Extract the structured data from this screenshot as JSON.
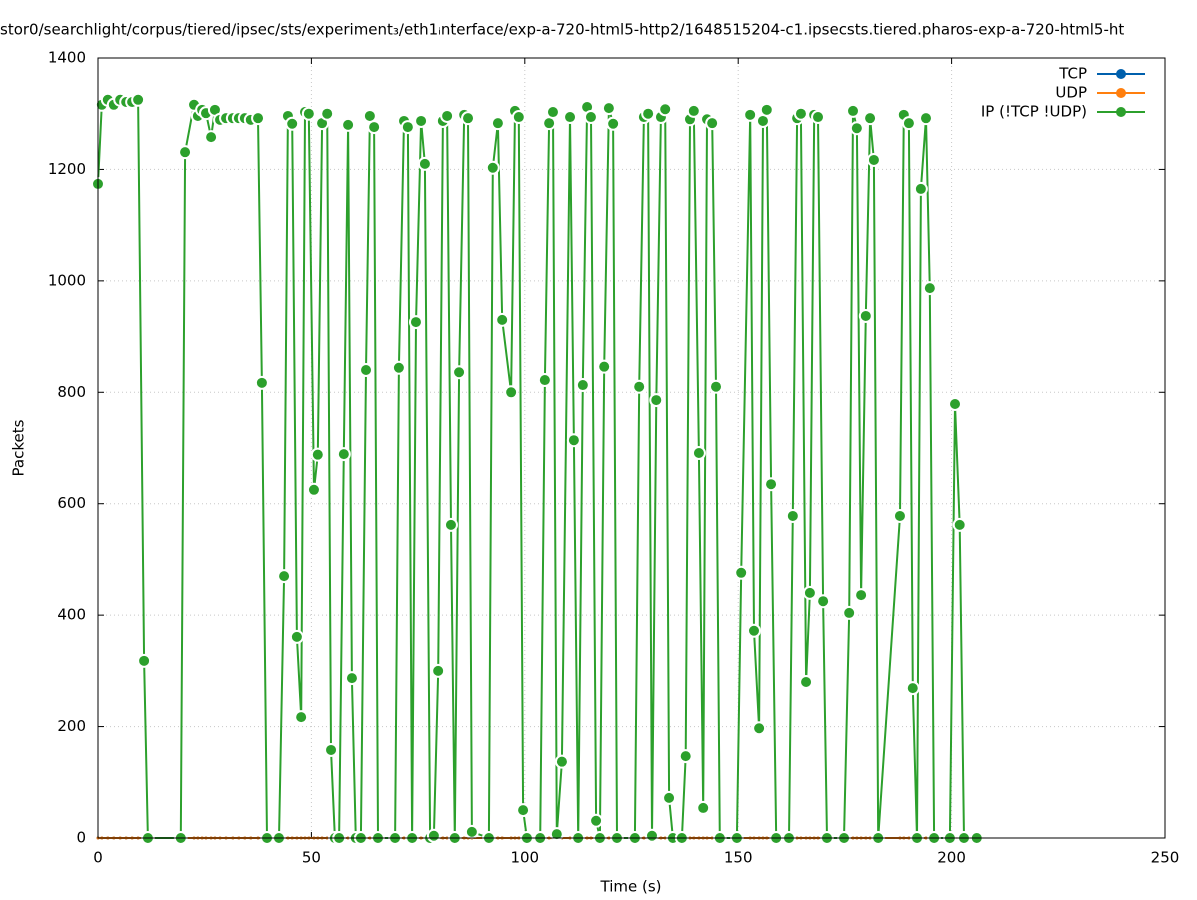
{
  "chart_data": {
    "type": "line",
    "title": "stor0/searchlight/corpus/tiered/ipsec/sts/experiment₃/eth1ᵢnterface/exp-a-720-html5-http2/1648515204-c1.ipsecsts.tiered.pharos-exp-a-720-html5-ht",
    "x_label": "Time (s)",
    "y_label": "Packets",
    "xlim": [
      0,
      250
    ],
    "xticks": [
      0,
      50,
      100,
      150,
      200,
      250
    ],
    "ylim": [
      0,
      1400
    ],
    "yticks": [
      0,
      200,
      400,
      600,
      800,
      1000,
      1200,
      1400
    ],
    "grid": true,
    "legend": "top-right",
    "x": [
      0,
      0.9,
      2.3,
      3.7,
      5.2,
      6.6,
      8.0,
      9.4,
      10.8,
      11.7,
      19.4,
      20.4,
      22.5,
      23.4,
      24.4,
      25.3,
      26.5,
      27.4,
      28.6,
      30.0,
      31.6,
      33.0,
      34.4,
      35.8,
      37.5,
      38.4,
      39.6,
      42.4,
      43.6,
      44.5,
      45.5,
      46.6,
      47.6,
      48.5,
      49.4,
      50.6,
      51.5,
      52.5,
      53.7,
      54.6,
      55.5,
      56.5,
      57.6,
      58.6,
      59.5,
      60.4,
      61.6,
      62.8,
      63.7,
      64.7,
      65.6,
      69.6,
      70.5,
      71.7,
      72.6,
      73.6,
      74.5,
      75.7,
      76.6,
      77.8,
      78.7,
      79.7,
      80.8,
      81.8,
      82.7,
      83.6,
      84.6,
      85.8,
      86.7,
      87.6,
      91.6,
      92.5,
      93.7,
      94.7,
      96.8,
      97.7,
      98.6,
      99.6,
      100.5,
      103.6,
      104.7,
      105.7,
      106.6,
      107.5,
      108.7,
      110.6,
      111.5,
      112.5,
      113.6,
      114.6,
      115.5,
      116.7,
      117.6,
      118.6,
      119.7,
      120.7,
      121.6,
      125.8,
      126.8,
      127.9,
      128.9,
      129.8,
      130.8,
      131.9,
      132.9,
      133.8,
      134.7,
      136.8,
      137.7,
      138.7,
      139.6,
      140.8,
      141.8,
      142.7,
      143.9,
      144.8,
      145.7,
      149.7,
      150.7,
      152.8,
      153.7,
      154.9,
      155.8,
      156.7,
      157.7,
      158.9,
      161.9,
      162.8,
      163.8,
      164.7,
      165.9,
      166.8,
      167.8,
      168.7,
      169.9,
      170.8,
      174.8,
      176.0,
      176.9,
      177.8,
      178.8,
      179.9,
      180.9,
      181.8,
      182.8,
      187.9,
      188.8,
      190.0,
      190.9,
      191.9,
      192.8,
      194.0,
      194.9,
      195.9,
      199.6,
      200.8,
      201.9,
      202.9,
      205.9
    ],
    "series": [
      {
        "name": "TCP",
        "color": "#0060ad",
        "values": [
          0,
          0,
          0,
          0,
          0,
          0,
          0,
          0,
          0,
          0,
          0,
          0,
          0,
          0,
          0,
          0,
          0,
          0,
          0,
          0,
          0,
          0,
          0,
          0,
          0,
          0,
          0,
          0,
          0,
          0,
          0,
          0,
          0,
          0,
          0,
          0,
          0,
          0,
          0,
          0,
          0,
          0,
          0,
          0,
          0,
          0,
          0,
          0,
          0,
          0,
          0,
          0,
          0,
          0,
          0,
          0,
          0,
          0,
          0,
          0,
          0,
          0,
          0,
          0,
          0,
          0,
          0,
          0,
          0,
          0,
          0,
          0,
          0,
          0,
          0,
          0,
          0,
          0,
          0,
          0,
          0,
          0,
          0,
          0,
          0,
          0,
          0,
          0,
          0,
          0,
          0,
          0,
          0,
          0,
          0,
          0,
          0,
          0,
          0,
          0,
          0,
          0,
          0,
          0,
          0,
          0,
          0,
          0,
          0,
          0,
          0,
          0,
          0,
          0,
          0,
          0,
          0,
          0,
          0,
          0,
          0,
          0,
          0,
          0,
          0,
          0,
          0,
          0,
          0,
          0,
          0,
          0,
          0,
          0,
          0,
          0,
          0,
          0,
          0,
          0,
          0,
          0,
          0,
          0,
          0,
          0,
          0,
          0,
          0,
          0,
          0,
          0,
          0,
          0,
          0,
          0,
          0,
          0,
          0
        ]
      },
      {
        "name": "UDP",
        "color": "#ff7f0e",
        "values": [
          0,
          0,
          0,
          0,
          0,
          0,
          0,
          0,
          0,
          0,
          0,
          0,
          0,
          0,
          0,
          0,
          0,
          0,
          0,
          0,
          0,
          0,
          0,
          0,
          0,
          0,
          0,
          0,
          0,
          0,
          0,
          0,
          0,
          0,
          0,
          0,
          0,
          0,
          0,
          0,
          0,
          0,
          0,
          0,
          0,
          0,
          0,
          0,
          0,
          0,
          0,
          0,
          0,
          0,
          0,
          0,
          0,
          0,
          0,
          0,
          0,
          0,
          0,
          0,
          0,
          0,
          0,
          0,
          0,
          0,
          0,
          0,
          0,
          0,
          0,
          0,
          0,
          0,
          0,
          0,
          0,
          0,
          0,
          0,
          0,
          0,
          0,
          0,
          0,
          0,
          0,
          0,
          0,
          0,
          0,
          0,
          0,
          0,
          0,
          0,
          0,
          0,
          0,
          0,
          0,
          0,
          0,
          0,
          0,
          0,
          0,
          0,
          0,
          0,
          0,
          0,
          0,
          0,
          0,
          0,
          0,
          0,
          0,
          0,
          0,
          0,
          0,
          0,
          0,
          0,
          0,
          0,
          0,
          0,
          0,
          0,
          0,
          0,
          0,
          0,
          0,
          0,
          0,
          0,
          0,
          0,
          0,
          0,
          0,
          0,
          0,
          0,
          0,
          0,
          0,
          0,
          0,
          0,
          0
        ]
      },
      {
        "name": "IP (!TCP  !UDP)",
        "color": "#2ca02c",
        "values": [
          1174,
          1316,
          1325,
          1316,
          1325,
          1321,
          1321,
          1325,
          318,
          0,
          0,
          1231,
          1316,
          1296,
          1307,
          1301,
          1258,
          1307,
          1289,
          1292,
          1292,
          1292,
          1292,
          1289,
          1292,
          817,
          0,
          0,
          470,
          1296,
          1282,
          361,
          217,
          1303,
          1300,
          625,
          688,
          1283,
          1300,
          158,
          0,
          0,
          689,
          1280,
          287,
          0,
          0,
          840,
          1296,
          1276,
          0,
          0,
          844,
          1287,
          1276,
          0,
          926,
          1287,
          1210,
          0,
          4,
          300,
          1287,
          1296,
          562,
          0,
          836,
          1298,
          1292,
          11,
          0,
          1203,
          1283,
          930,
          800,
          1305,
          1294,
          50,
          0,
          0,
          822,
          1283,
          1303,
          7,
          137,
          1294,
          714,
          0,
          813,
          1312,
          1294,
          31,
          0,
          846,
          1310,
          1282,
          0,
          0,
          810,
          1294,
          1300,
          4,
          786,
          1294,
          1308,
          72,
          0,
          0,
          147,
          1290,
          1305,
          691,
          54,
          1290,
          1283,
          810,
          0,
          0,
          476,
          1298,
          372,
          197,
          1287,
          1307,
          635,
          0,
          0,
          578,
          1292,
          1300,
          280,
          440,
          1298,
          1294,
          425,
          0,
          0,
          404,
          1305,
          1274,
          436,
          937,
          1292,
          1217,
          0,
          578,
          1298,
          1283,
          269,
          0,
          1165,
          1292,
          987,
          0,
          0,
          779,
          562,
          0,
          0
        ]
      }
    ]
  }
}
